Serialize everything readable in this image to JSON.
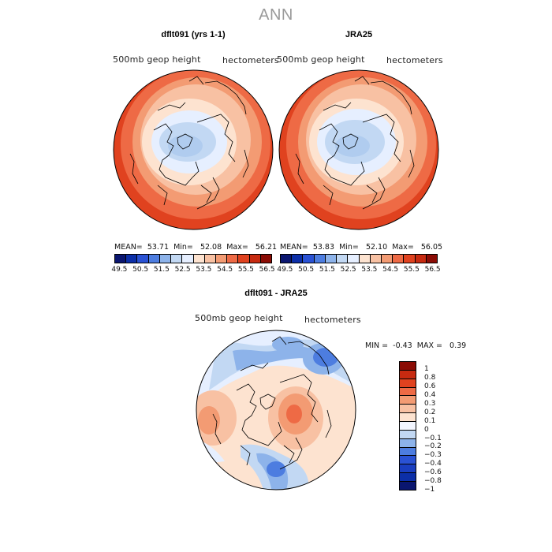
{
  "figure": {
    "title": "ANN"
  },
  "panels": [
    {
      "title": "dflt091 (yrs 1-1)",
      "variable": "500mb geop height",
      "units": "hectometers",
      "stats": {
        "mean_label": "MEAN=",
        "mean": "53.71",
        "min_label": "Min=",
        "min": "52.08",
        "max_label": "Max=",
        "max": "56.21"
      }
    },
    {
      "title": "JRA25",
      "variable": "500mb geop height",
      "units": "hectometers",
      "stats": {
        "mean_label": "MEAN=",
        "mean": "53.83",
        "min_label": "Min=",
        "min": "52.10",
        "max_label": "Max=",
        "max": "56.05"
      }
    },
    {
      "title": "dflt091 - JRA25",
      "variable": "500mb geop height",
      "units": "hectometers",
      "stats": {
        "min_label": "MIN =",
        "min": "-0.43",
        "max_label": "MAX =",
        "max": "0.39"
      }
    }
  ],
  "colorbar_abs": {
    "colors": [
      "#0a1670",
      "#0c2fa8",
      "#2a52d4",
      "#4d7de0",
      "#8db3ea",
      "#c2d8f3",
      "#e6efff",
      "#fde3d0",
      "#f8c1a3",
      "#f39b73",
      "#ee6a45",
      "#e0421f",
      "#c72a10",
      "#8b0c05"
    ],
    "labels": [
      "49.5",
      "50.5",
      "51.5",
      "52.5",
      "53.5",
      "54.5",
      "55.5",
      "56.5"
    ]
  },
  "colorbar_diff": {
    "colors": [
      "#8b0c05",
      "#c72a10",
      "#e0421f",
      "#ee6a45",
      "#f39b73",
      "#f8c1a3",
      "#fde3d0",
      "#f3f6ff",
      "#c2d8f3",
      "#8db3ea",
      "#4d7de0",
      "#2a52d4",
      "#1a3ec0",
      "#0c2fa8",
      "#0a1670"
    ],
    "labels": [
      "1",
      "0.8",
      "0.6",
      "0.4",
      "0.3",
      "0.2",
      "0.1",
      "0",
      "−0.1",
      "−0.2",
      "−0.3",
      "−0.4",
      "−0.6",
      "−0.8",
      "−1"
    ]
  }
}
